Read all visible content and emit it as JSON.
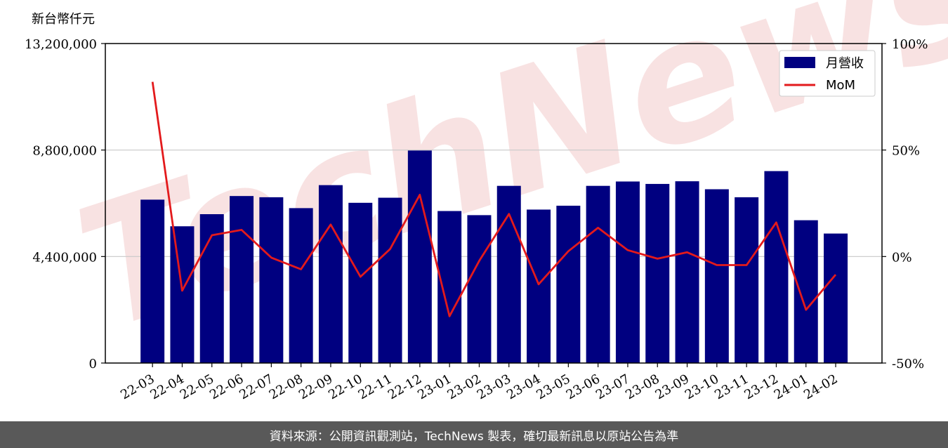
{
  "footer": {
    "source_text": "資料來源：公開資訊觀測站，TechNews 製表，確切最新訊息以原站公告為準"
  },
  "watermark": {
    "text": "TechNews",
    "color": "#f3caca"
  },
  "chart_data": {
    "type": "bar",
    "title": "",
    "ylabel": "新台幣仟元",
    "y2label": "",
    "categories": [
      "22-03",
      "22-04",
      "22-05",
      "22-06",
      "22-07",
      "22-08",
      "22-09",
      "22-10",
      "22-11",
      "22-12",
      "23-01",
      "23-02",
      "23-03",
      "23-04",
      "23-05",
      "23-06",
      "23-07",
      "23-08",
      "23-09",
      "23-10",
      "23-11",
      "23-12",
      "24-01",
      "24-02"
    ],
    "ylim": [
      0,
      13200000
    ],
    "yticks": [
      0,
      4400000,
      8800000,
      13200000
    ],
    "ytick_labels": [
      "0",
      "4,400,000",
      "8,800,000",
      "13,200,000"
    ],
    "y2lim": [
      -50,
      100
    ],
    "y2ticks": [
      -50,
      0,
      50,
      100
    ],
    "y2tick_labels": [
      "-50%",
      "0%",
      "50%",
      "100%"
    ],
    "grid": "horizontal",
    "legend_position": "top-right",
    "series": [
      {
        "name": "月營收",
        "type": "bar",
        "axis": "left",
        "color": "#000080",
        "values": [
          6750000,
          5650000,
          6150000,
          6900000,
          6850000,
          6400000,
          7350000,
          6620000,
          6830000,
          8780000,
          6280000,
          6110000,
          7320000,
          6340000,
          6500000,
          7320000,
          7500000,
          7400000,
          7510000,
          7180000,
          6850000,
          7930000,
          5900000,
          5350000
        ]
      },
      {
        "name": "MoM",
        "type": "line",
        "axis": "right",
        "color": "#e31a1c",
        "values": [
          82,
          -16,
          10,
          12.5,
          -0.5,
          -6,
          15,
          -9.5,
          3.5,
          29,
          -28,
          -2,
          20,
          -13,
          2.5,
          13.5,
          3,
          -1,
          2,
          -4,
          -4,
          16,
          -25,
          -8.5
        ]
      }
    ]
  }
}
